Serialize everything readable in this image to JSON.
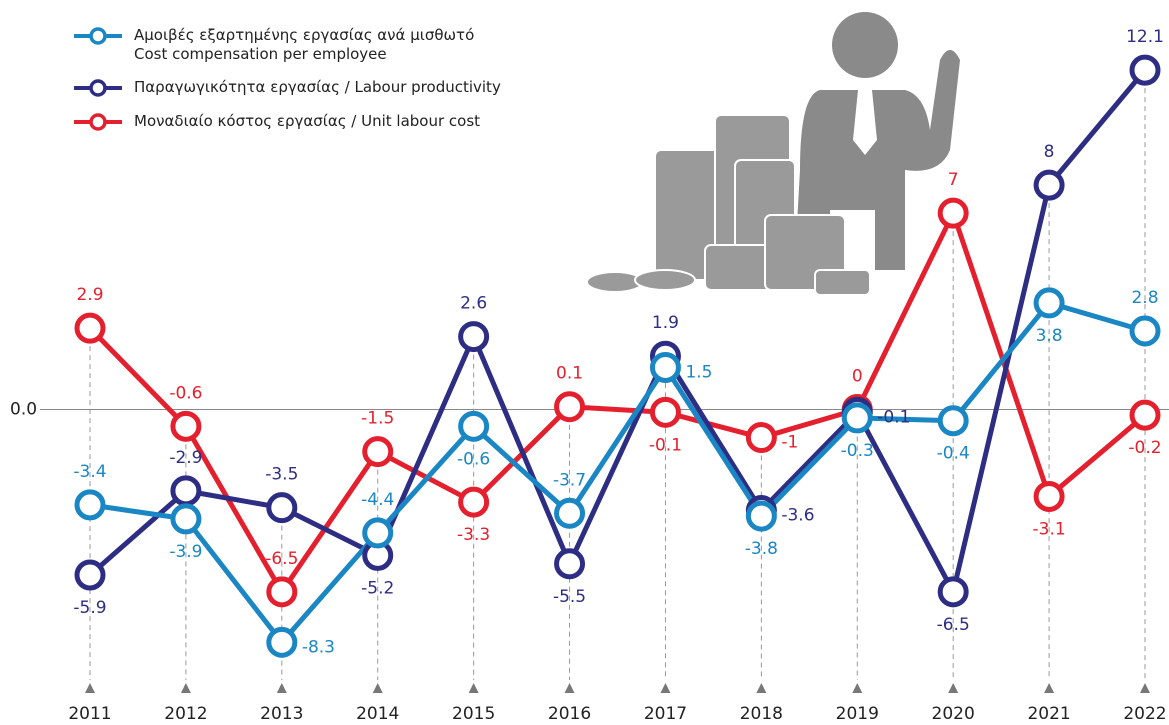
{
  "chart_data": {
    "type": "line",
    "categories": [
      "2011",
      "2012",
      "2013",
      "2014",
      "2015",
      "2016",
      "2017",
      "2018",
      "2019",
      "2020",
      "2021",
      "2022"
    ],
    "series": [
      {
        "name": "Αμοιβές εξαρτημένης εργασίας ανά μισθωτό\nCost compensation per employee",
        "color": "#1a87c4",
        "values": [
          -3.4,
          -3.9,
          -8.3,
          -4.4,
          -0.6,
          -3.7,
          1.5,
          -3.8,
          -0.3,
          -0.4,
          3.8,
          2.8
        ]
      },
      {
        "name": "Παραγωγικότητα εργασίας / Labour productivity",
        "color": "#2e2d84",
        "values": [
          -5.9,
          -2.9,
          -3.5,
          -5.2,
          2.6,
          -5.5,
          1.9,
          -3.6,
          -0.1,
          -6.5,
          8.0,
          12.1
        ]
      },
      {
        "name": "Μοναδιαίο κόστος εργασίας / Unit labour cost",
        "color": "#e5202e",
        "values": [
          2.9,
          -0.6,
          -6.5,
          -1.5,
          -3.3,
          0.1,
          -0.1,
          -1.0,
          0.0,
          7.0,
          -3.1,
          -0.2
        ]
      }
    ],
    "ylim": [
      -10,
      14.6
    ],
    "yticks": [
      {
        "value": 0,
        "label": "0.0"
      }
    ],
    "value_labels_visible": true
  }
}
